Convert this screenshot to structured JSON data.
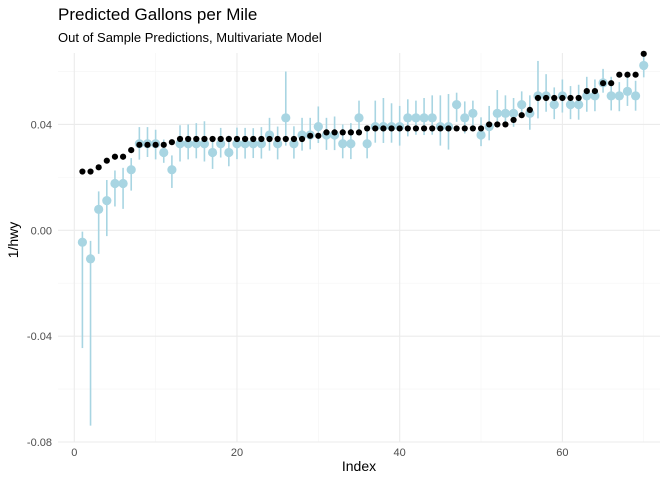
{
  "chart_data": {
    "type": "scatter",
    "title": "Predicted Gallons per Mile",
    "subtitle": "Out of Sample Predictions, Multivariate Model",
    "xlabel": "Index",
    "ylabel": "1/hwy",
    "xlim": [
      -2,
      72
    ],
    "ylim": [
      -0.08,
      0.067
    ],
    "xticks": [
      0,
      20,
      40,
      60
    ],
    "xtick_labels": [
      "0",
      "20",
      "40",
      "60"
    ],
    "yticks": [
      -0.08,
      -0.04,
      0.0,
      0.04
    ],
    "ytick_labels": [
      "-0.08",
      "-0.04",
      "0.00",
      "0.04"
    ],
    "grid": true,
    "legend": "none",
    "colors": {
      "prediction": "#a8d5e2",
      "actual": "#000000",
      "grid_major": "#ebebeb",
      "grid_minor": "#f4f4f4"
    },
    "x": [
      1,
      2,
      3,
      4,
      5,
      6,
      7,
      8,
      9,
      10,
      11,
      12,
      13,
      14,
      15,
      16,
      17,
      18,
      19,
      20,
      21,
      22,
      23,
      24,
      25,
      26,
      27,
      28,
      29,
      30,
      31,
      32,
      33,
      34,
      35,
      36,
      37,
      38,
      39,
      40,
      41,
      42,
      43,
      44,
      45,
      46,
      47,
      48,
      49,
      50,
      51,
      52,
      53,
      54,
      55,
      56,
      57,
      58,
      59,
      60,
      61,
      62,
      63,
      64,
      65,
      66,
      67,
      68,
      69,
      70
    ],
    "series": [
      {
        "role": "prediction",
        "values": [
          -0.0045,
          -0.0108,
          0.0079,
          0.0112,
          0.0177,
          0.0177,
          0.0229,
          0.0327,
          0.0327,
          0.0327,
          0.0294,
          0.0229,
          0.0327,
          0.0327,
          0.0327,
          0.0327,
          0.0294,
          0.0327,
          0.0294,
          0.0327,
          0.0327,
          0.0327,
          0.0327,
          0.036,
          0.0327,
          0.0425,
          0.0327,
          0.036,
          0.036,
          0.0392,
          0.036,
          0.036,
          0.0327,
          0.0327,
          0.0425,
          0.0327,
          0.0392,
          0.0392,
          0.0392,
          0.0392,
          0.0425,
          0.0425,
          0.0425,
          0.0425,
          0.0392,
          0.0392,
          0.0475,
          0.0425,
          0.0442,
          0.036,
          0.0392,
          0.0442,
          0.0442,
          0.0442,
          0.0475,
          0.0442,
          0.0508,
          0.0508,
          0.0475,
          0.0508,
          0.0475,
          0.0475,
          0.0508,
          0.0508,
          0.0557,
          0.0508,
          0.0508,
          0.0525,
          0.0508,
          0.0623
        ],
        "lower": [
          -0.0445,
          -0.0738,
          -0.0089,
          -0.0022,
          0.009,
          0.0081,
          0.015,
          0.0267,
          0.0277,
          0.0268,
          0.0255,
          0.016,
          0.026,
          0.0268,
          0.0272,
          0.026,
          0.0232,
          0.0275,
          0.0242,
          0.0269,
          0.0271,
          0.0273,
          0.0271,
          0.0301,
          0.0268,
          0.032,
          0.0271,
          0.0301,
          0.0306,
          0.033,
          0.0304,
          0.0303,
          0.0272,
          0.0269,
          0.0361,
          0.0272,
          0.0331,
          0.033,
          0.0331,
          0.032,
          0.0355,
          0.0361,
          0.036,
          0.0361,
          0.032,
          0.0305,
          0.041,
          0.0366,
          0.0382,
          0.0318,
          0.034,
          0.0388,
          0.039,
          0.0391,
          0.0425,
          0.038,
          0.0423,
          0.0448,
          0.042,
          0.0445,
          0.042,
          0.0418,
          0.0448,
          0.045,
          0.052,
          0.0453,
          0.045,
          0.047,
          0.0452,
          0.0578
        ],
        "upper": [
          -0.0005,
          -0.004,
          0.0147,
          0.019,
          0.0226,
          0.0236,
          0.0273,
          0.039,
          0.039,
          0.038,
          0.0343,
          0.0283,
          0.0397,
          0.04,
          0.0405,
          0.0412,
          0.0346,
          0.0387,
          0.0358,
          0.0388,
          0.0387,
          0.0386,
          0.039,
          0.0425,
          0.0392,
          0.06,
          0.0393,
          0.0425,
          0.0425,
          0.0468,
          0.0425,
          0.043,
          0.04,
          0.0405,
          0.049,
          0.0392,
          0.049,
          0.05,
          0.048,
          0.047,
          0.0495,
          0.049,
          0.05,
          0.051,
          0.051,
          0.0515,
          0.052,
          0.0487,
          0.049,
          0.0427,
          0.047,
          0.053,
          0.051,
          0.05,
          0.0525,
          0.051,
          0.064,
          0.059,
          0.054,
          0.057,
          0.0545,
          0.055,
          0.058,
          0.057,
          0.061,
          0.058,
          0.056,
          0.06,
          0.0565,
          0.0665
        ]
      },
      {
        "role": "actual",
        "values": [
          0.0222,
          0.0222,
          0.0238,
          0.0263,
          0.0278,
          0.0278,
          0.0303,
          0.0323,
          0.0323,
          0.0323,
          0.0323,
          0.0333,
          0.0345,
          0.0345,
          0.0345,
          0.0345,
          0.0345,
          0.0345,
          0.0345,
          0.0345,
          0.0345,
          0.0345,
          0.0345,
          0.0345,
          0.0345,
          0.0345,
          0.0345,
          0.0345,
          0.0357,
          0.0357,
          0.037,
          0.037,
          0.037,
          0.037,
          0.037,
          0.0385,
          0.0385,
          0.0385,
          0.0385,
          0.0385,
          0.0385,
          0.0385,
          0.0385,
          0.0385,
          0.0385,
          0.0385,
          0.0385,
          0.0385,
          0.0385,
          0.0385,
          0.04,
          0.04,
          0.04,
          0.0417,
          0.0435,
          0.0455,
          0.05,
          0.05,
          0.05,
          0.05,
          0.05,
          0.05,
          0.0526,
          0.0526,
          0.0556,
          0.0556,
          0.0588,
          0.0588,
          0.0588,
          0.0667
        ]
      }
    ]
  }
}
